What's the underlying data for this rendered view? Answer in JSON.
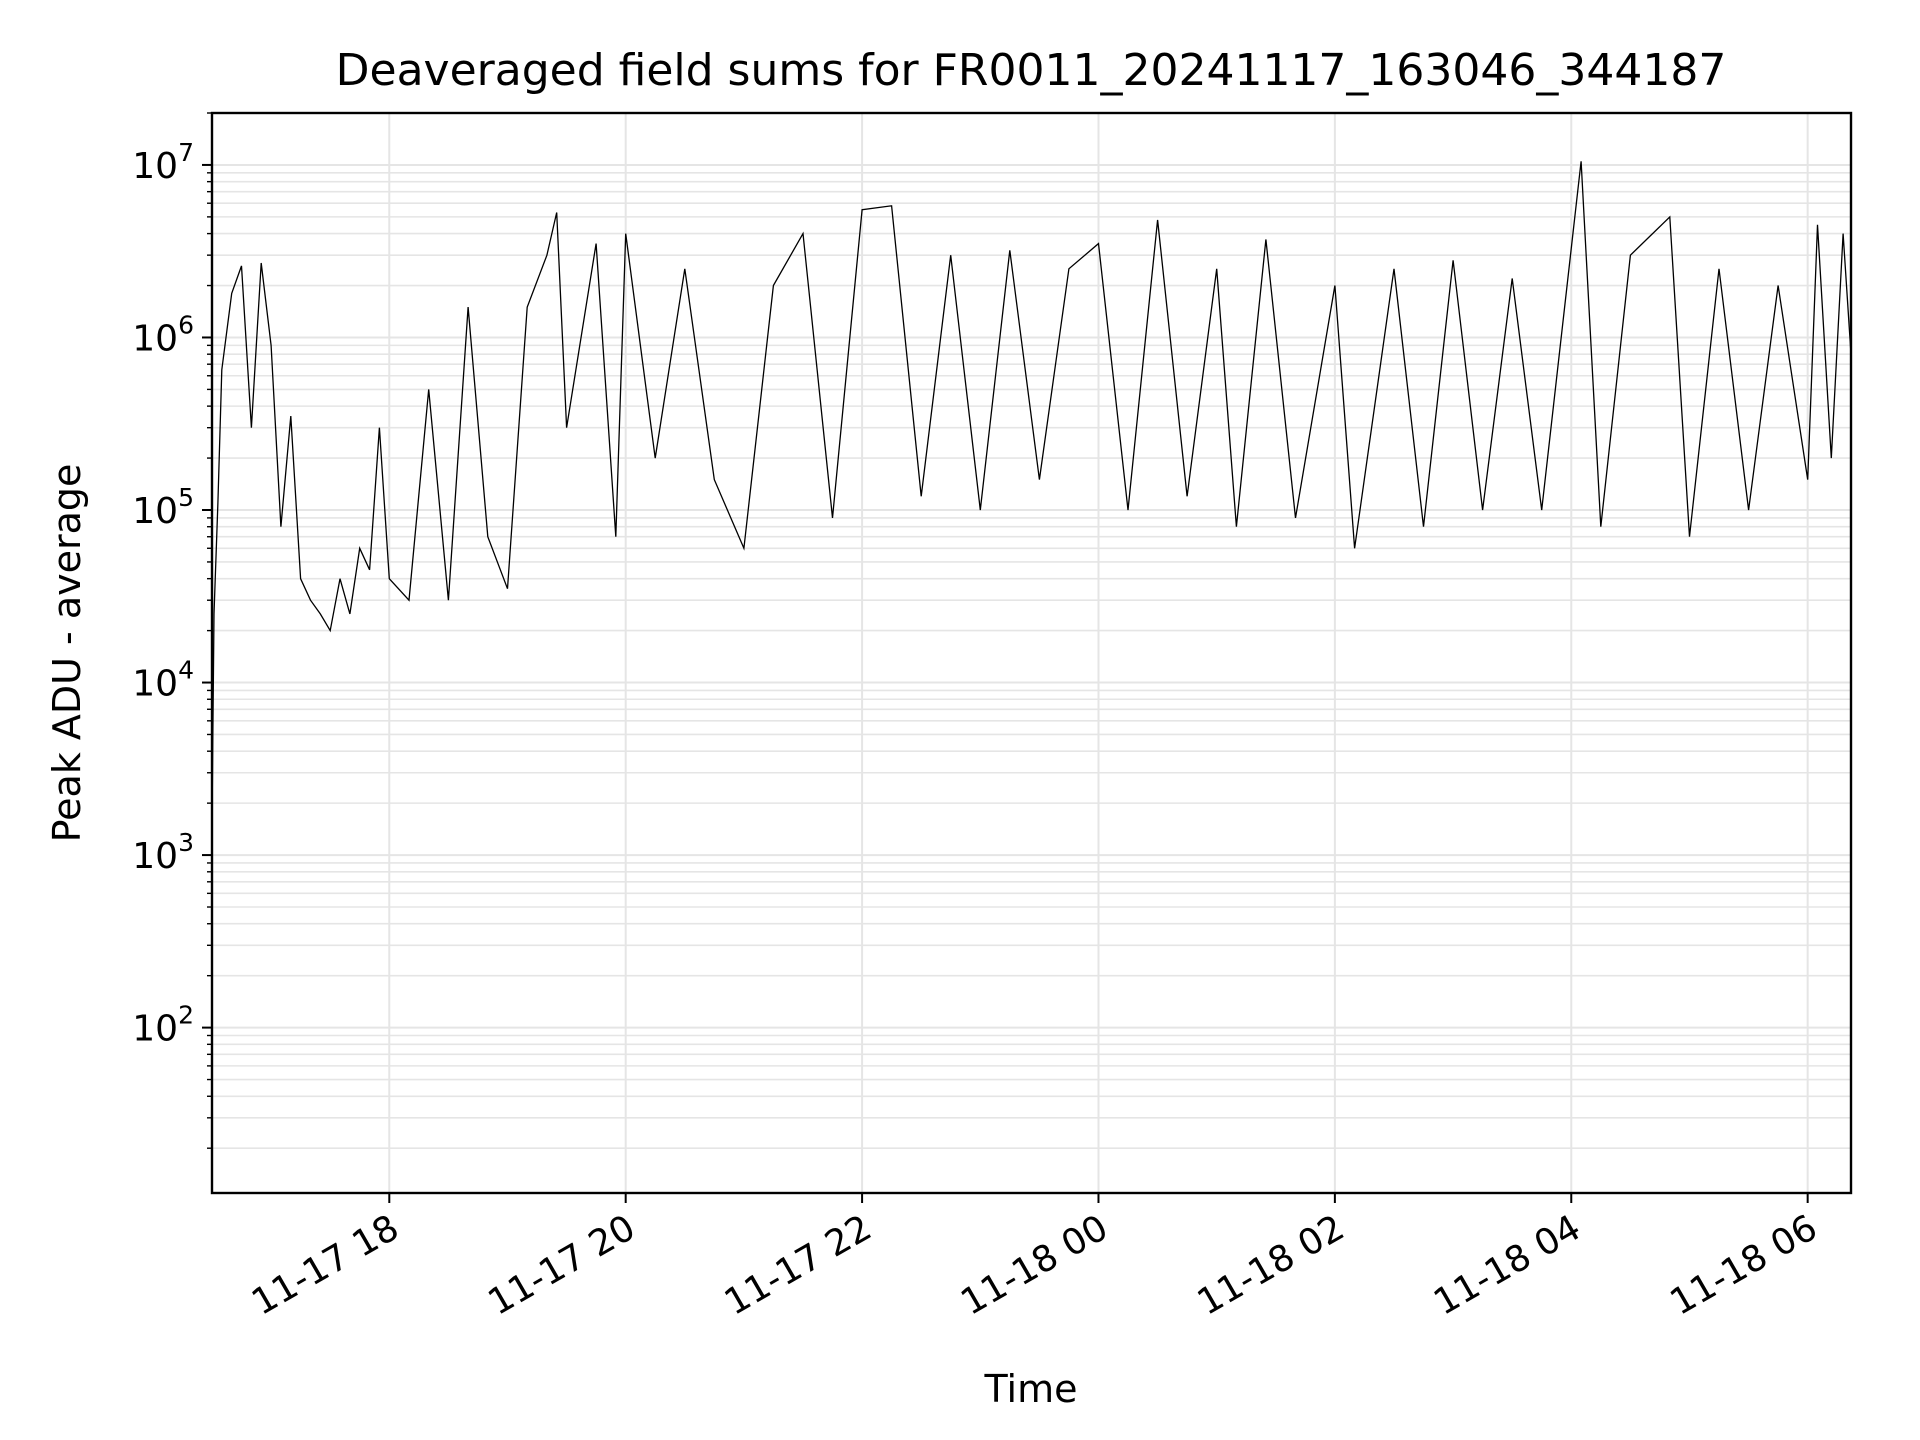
{
  "chart_data": {
    "type": "line",
    "title": "Deaveraged field sums for FR0011_20241117_163046_344187",
    "xlabel": "Time",
    "ylabel": "Peak ADU - average",
    "yscale": "log",
    "grid": true,
    "line_color": "#000000",
    "grid_color": "#e5e5e5",
    "x_range": [
      "2024-11-17 16:30",
      "2024-11-18 06:22"
    ],
    "ylim": [
      11,
      20000000
    ],
    "x_ticks": [
      {
        "t": "2024-11-17 18:00",
        "label": "11-17 18"
      },
      {
        "t": "2024-11-17 20:00",
        "label": "11-17 20"
      },
      {
        "t": "2024-11-17 22:00",
        "label": "11-17 22"
      },
      {
        "t": "2024-11-18 00:00",
        "label": "11-18 00"
      },
      {
        "t": "2024-11-18 02:00",
        "label": "11-18 02"
      },
      {
        "t": "2024-11-18 04:00",
        "label": "11-18 04"
      },
      {
        "t": "2024-11-18 06:00",
        "label": "11-18 06"
      }
    ],
    "y_ticks": [
      {
        "value": 100,
        "base": "10",
        "exp": "2"
      },
      {
        "value": 1000,
        "base": "10",
        "exp": "3"
      },
      {
        "value": 10000,
        "base": "10",
        "exp": "4"
      },
      {
        "value": 100000,
        "base": "10",
        "exp": "5"
      },
      {
        "value": 1000000,
        "base": "10",
        "exp": "6"
      },
      {
        "value": 10000000,
        "base": "10",
        "exp": "7"
      }
    ],
    "series": [
      {
        "points": [
          [
            "2024-11-17 16:30",
            1500
          ],
          [
            "2024-11-17 16:31",
            25000
          ],
          [
            "2024-11-17 16:33",
            110000
          ],
          [
            "2024-11-17 16:35",
            650000
          ],
          [
            "2024-11-17 16:40",
            1800000
          ],
          [
            "2024-11-17 16:45",
            2600000
          ],
          [
            "2024-11-17 16:50",
            300000
          ],
          [
            "2024-11-17 16:55",
            2700000
          ],
          [
            "2024-11-17 17:00",
            900000
          ],
          [
            "2024-11-17 17:05",
            80000
          ],
          [
            "2024-11-17 17:10",
            350000
          ],
          [
            "2024-11-17 17:15",
            40000
          ],
          [
            "2024-11-17 17:20",
            30000
          ],
          [
            "2024-11-17 17:25",
            25000
          ],
          [
            "2024-11-17 17:30",
            20000
          ],
          [
            "2024-11-17 17:35",
            40000
          ],
          [
            "2024-11-17 17:40",
            25000
          ],
          [
            "2024-11-17 17:45",
            60000
          ],
          [
            "2024-11-17 17:50",
            45000
          ],
          [
            "2024-11-17 17:55",
            300000
          ],
          [
            "2024-11-17 18:00",
            40000
          ],
          [
            "2024-11-17 18:10",
            30000
          ],
          [
            "2024-11-17 18:20",
            500000
          ],
          [
            "2024-11-17 18:30",
            30000
          ],
          [
            "2024-11-17 18:40",
            1500000
          ],
          [
            "2024-11-17 18:50",
            70000
          ],
          [
            "2024-11-17 19:00",
            35000
          ],
          [
            "2024-11-17 19:10",
            1500000
          ],
          [
            "2024-11-17 19:20",
            3000000
          ],
          [
            "2024-11-17 19:25",
            5300000
          ],
          [
            "2024-11-17 19:30",
            300000
          ],
          [
            "2024-11-17 19:45",
            3500000
          ],
          [
            "2024-11-17 19:55",
            70000
          ],
          [
            "2024-11-17 20:00",
            4000000
          ],
          [
            "2024-11-17 20:15",
            200000
          ],
          [
            "2024-11-17 20:30",
            2500000
          ],
          [
            "2024-11-17 20:45",
            150000
          ],
          [
            "2024-11-17 21:00",
            60000
          ],
          [
            "2024-11-17 21:15",
            2000000
          ],
          [
            "2024-11-17 21:30",
            4000000
          ],
          [
            "2024-11-17 21:45",
            90000
          ],
          [
            "2024-11-17 22:00",
            5500000
          ],
          [
            "2024-11-17 22:15",
            5800000
          ],
          [
            "2024-11-17 22:30",
            120000
          ],
          [
            "2024-11-17 22:45",
            3000000
          ],
          [
            "2024-11-17 23:00",
            100000
          ],
          [
            "2024-11-17 23:15",
            3200000
          ],
          [
            "2024-11-17 23:30",
            150000
          ],
          [
            "2024-11-17 23:45",
            2500000
          ],
          [
            "2024-11-18 00:00",
            3500000
          ],
          [
            "2024-11-18 00:15",
            100000
          ],
          [
            "2024-11-18 00:30",
            4800000
          ],
          [
            "2024-11-18 00:45",
            120000
          ],
          [
            "2024-11-18 01:00",
            2500000
          ],
          [
            "2024-11-18 01:10",
            80000
          ],
          [
            "2024-11-18 01:25",
            3700000
          ],
          [
            "2024-11-18 01:40",
            90000
          ],
          [
            "2024-11-18 02:00",
            2000000
          ],
          [
            "2024-11-18 02:10",
            60000
          ],
          [
            "2024-11-18 02:30",
            2500000
          ],
          [
            "2024-11-18 02:45",
            80000
          ],
          [
            "2024-11-18 03:00",
            2800000
          ],
          [
            "2024-11-18 03:15",
            100000
          ],
          [
            "2024-11-18 03:30",
            2200000
          ],
          [
            "2024-11-18 03:45",
            100000
          ],
          [
            "2024-11-18 04:05",
            10500000
          ],
          [
            "2024-11-18 04:15",
            80000
          ],
          [
            "2024-11-18 04:30",
            3000000
          ],
          [
            "2024-11-18 04:50",
            5000000
          ],
          [
            "2024-11-18 05:00",
            70000
          ],
          [
            "2024-11-18 05:15",
            2500000
          ],
          [
            "2024-11-18 05:30",
            100000
          ],
          [
            "2024-11-18 05:45",
            2000000
          ],
          [
            "2024-11-18 06:00",
            150000
          ],
          [
            "2024-11-18 06:05",
            4500000
          ],
          [
            "2024-11-18 06:12",
            200000
          ],
          [
            "2024-11-18 06:18",
            4000000
          ],
          [
            "2024-11-18 06:22",
            800000
          ]
        ]
      }
    ]
  }
}
